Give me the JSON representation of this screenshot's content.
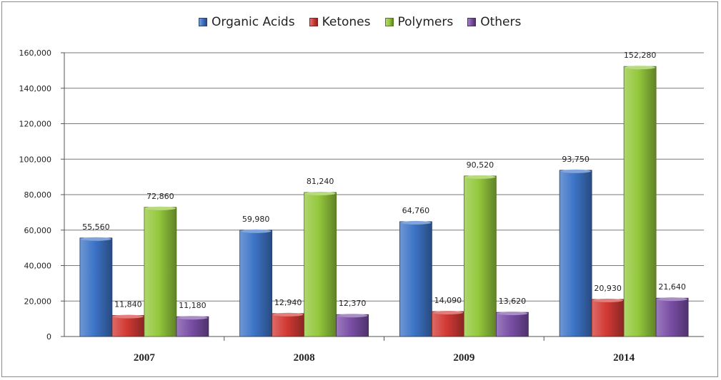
{
  "chart_data": {
    "type": "bar",
    "categories": [
      "2007",
      "2008",
      "2009",
      "2014"
    ],
    "series": [
      {
        "name": "Organic Acids",
        "values": [
          55560,
          59980,
          64760,
          93750
        ],
        "labels": [
          "55,560",
          "59,980",
          "64,760",
          "93,750"
        ],
        "color": "#3d74c7"
      },
      {
        "name": "Ketones",
        "values": [
          11840,
          12940,
          14090,
          20930
        ],
        "labels": [
          "11,840",
          "12,940",
          "14,090",
          "20,930"
        ],
        "color": "#d23a35"
      },
      {
        "name": "Polymers",
        "values": [
          72860,
          81240,
          90520,
          152280
        ],
        "labels": [
          "72,860",
          "81,240",
          "90,520",
          "152,280"
        ],
        "color": "#94c83c"
      },
      {
        "name": "Others",
        "values": [
          11180,
          12370,
          13620,
          21640
        ],
        "labels": [
          "11,180",
          "12,370",
          "13,620",
          "21,640"
        ],
        "color": "#7a4fa6"
      }
    ],
    "y_ticks": [
      0,
      20000,
      40000,
      60000,
      80000,
      100000,
      120000,
      140000,
      160000
    ],
    "y_tick_labels": [
      "0",
      "20,000",
      "40,000",
      "60,000",
      "80,000",
      "100,000",
      "120,000",
      "140,000",
      "160,000"
    ],
    "ylim": [
      0,
      160000
    ],
    "grid": true,
    "legend_position": "top",
    "title": "",
    "xlabel": "",
    "ylabel": ""
  }
}
